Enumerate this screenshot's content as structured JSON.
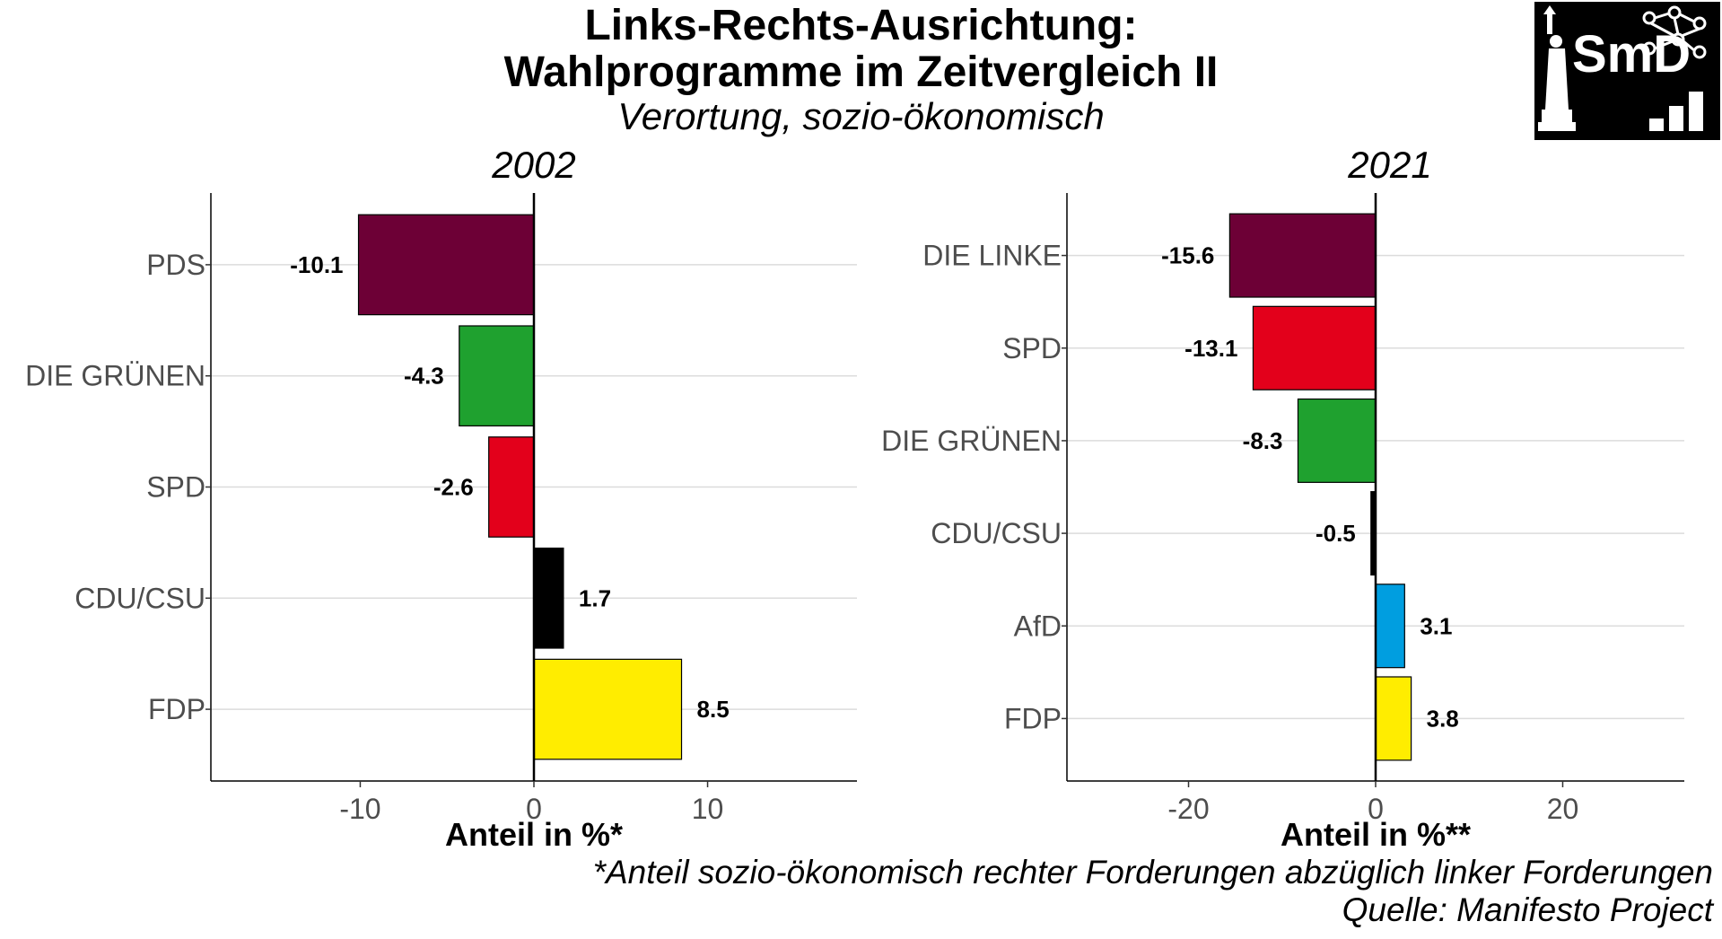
{
  "title_line1": "Links-Rechts-Ausrichtung:",
  "title_line2": "Wahlprogramme im Zeitvergleich II",
  "subtitle": "Verortung, sozio-ökonomisch",
  "logo_text": "SmD",
  "footnote": "*Anteil sozio-ökonomisch rechter Forderungen abzüglich linker Forderungen",
  "source": "Quelle: Manifesto Project",
  "chart_data": [
    {
      "type": "bar",
      "orientation": "horizontal",
      "title": "2002",
      "xlabel": "Anteil in %*",
      "xlim": [
        -18.6,
        18.6
      ],
      "xticks": [
        -10,
        0,
        10
      ],
      "xtick_labels": [
        "-10",
        "0",
        "10"
      ],
      "grid": "horizontal",
      "categories": [
        "PDS",
        "DIE GRÜNEN",
        "SPD",
        "CDU/CSU",
        "FDP"
      ],
      "values": [
        -10.1,
        -4.3,
        -2.6,
        1.7,
        8.5
      ],
      "labels": [
        "-10.1",
        "-4.3",
        "-2.6",
        "1.7",
        "8.5"
      ],
      "colors": [
        "#6D0036",
        "#1FA12F",
        "#E3001B",
        "#000000",
        "#FFED00"
      ]
    },
    {
      "type": "bar",
      "orientation": "horizontal",
      "title": "2021",
      "xlabel": "Anteil in %**",
      "xlim": [
        -33,
        33
      ],
      "xticks": [
        -20,
        0,
        20
      ],
      "xtick_labels": [
        "-20",
        "0",
        "20"
      ],
      "grid": "horizontal",
      "categories": [
        "DIE LINKE",
        "SPD",
        "DIE GRÜNEN",
        "CDU/CSU",
        "AfD",
        "FDP"
      ],
      "values": [
        -15.6,
        -13.1,
        -8.3,
        -0.5,
        3.1,
        3.8
      ],
      "labels": [
        "-15.6",
        "-13.1",
        "-8.3",
        "-0.5",
        "3.1",
        "3.8"
      ],
      "colors": [
        "#6D0036",
        "#E3001B",
        "#1FA12F",
        "#000000",
        "#009EE0",
        "#FFED00"
      ]
    }
  ]
}
